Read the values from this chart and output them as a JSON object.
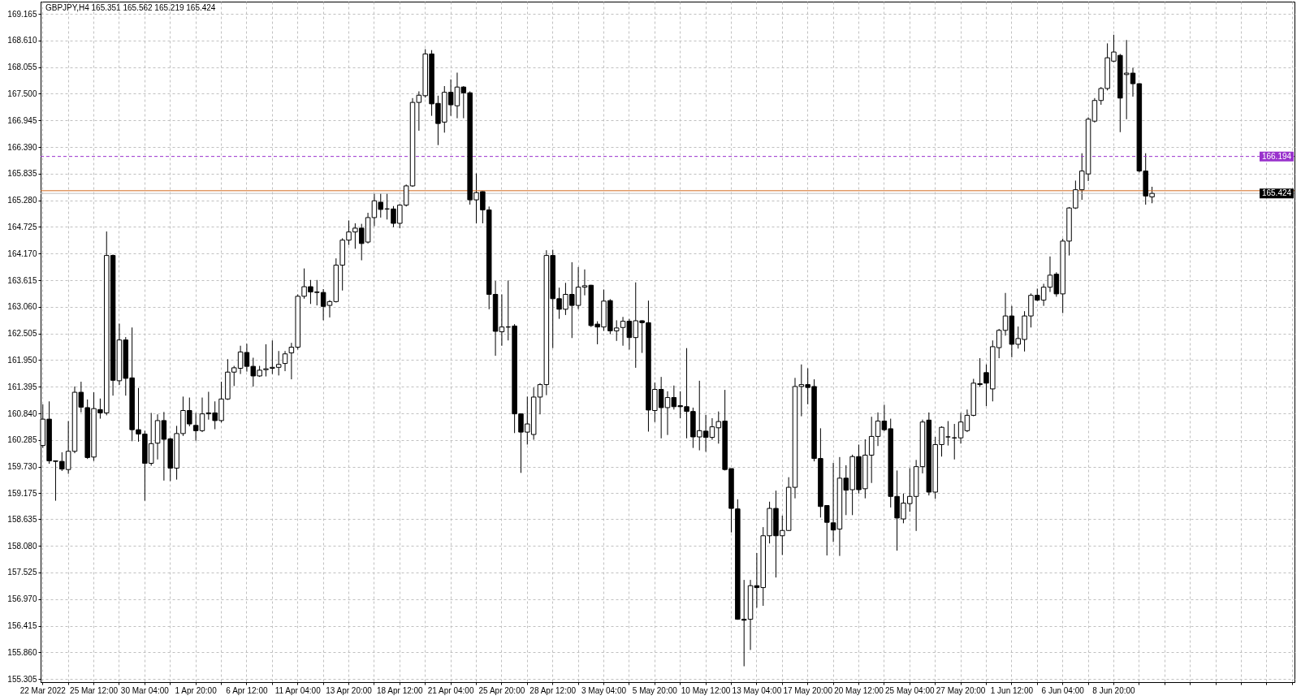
{
  "chart_data": {
    "type": "candlestick",
    "title": "GBPJPY,H4 165.351 165.562 165.219 165.424",
    "categories": [
      "22 Mar 2022",
      null,
      null,
      null,
      null,
      null,
      null,
      null,
      "25 Mar 12:00",
      null,
      null,
      null,
      null,
      null,
      null,
      null,
      "30 Mar 04:00",
      null,
      null,
      null,
      null,
      null,
      null,
      null,
      "1 Apr 20:00",
      null,
      null,
      null,
      null,
      null,
      null,
      null,
      "6 Apr 12:00",
      null,
      null,
      null,
      null,
      null,
      null,
      null,
      "11 Apr 04:00",
      null,
      null,
      null,
      null,
      null,
      null,
      null,
      "13 Apr 20:00",
      null,
      null,
      null,
      null,
      null,
      null,
      null,
      "18 Apr 12:00",
      null,
      null,
      null,
      null,
      null,
      null,
      null,
      "21 Apr 04:00",
      null,
      null,
      null,
      null,
      null,
      null,
      null,
      "25 Apr 20:00",
      null,
      null,
      null,
      null,
      null,
      null,
      null,
      "28 Apr 12:00",
      null,
      null,
      null,
      null,
      null,
      null,
      null,
      "3 May 04:00",
      null,
      null,
      null,
      null,
      null,
      null,
      null,
      "5 May 20:00",
      null,
      null,
      null,
      null,
      null,
      null,
      null,
      "10 May 12:00",
      null,
      null,
      null,
      null,
      null,
      null,
      null,
      "13 May 04:00",
      null,
      null,
      null,
      null,
      null,
      null,
      null,
      "17 May 20:00",
      null,
      null,
      null,
      null,
      null,
      null,
      null,
      "20 May 12:00",
      null,
      null,
      null,
      null,
      null,
      null,
      null,
      "25 May 04:00",
      null,
      null,
      null,
      null,
      null,
      null,
      null,
      "27 May 20:00",
      null,
      null,
      null,
      null,
      null,
      null,
      null,
      "1 Jun 12:00",
      null,
      null,
      null,
      null,
      null,
      null,
      null,
      "6 Jun 04:00",
      null,
      null,
      null,
      null,
      null,
      null,
      null,
      "8 Jun 20:00",
      null,
      null,
      null,
      null,
      null,
      null
    ],
    "ohlc": [
      [
        160.17,
        161.03,
        160.12,
        160.72
      ],
      [
        160.72,
        161.09,
        159.79,
        159.85
      ],
      [
        159.85,
        159.86,
        159.02,
        159.84
      ],
      [
        159.84,
        160.03,
        159.64,
        159.68
      ],
      [
        159.67,
        160.68,
        159.58,
        160.05
      ],
      [
        160.05,
        161.4,
        160.01,
        161.28
      ],
      [
        161.28,
        161.5,
        160.86,
        160.97
      ],
      [
        160.96,
        161.13,
        159.89,
        159.92
      ],
      [
        159.93,
        161.28,
        159.85,
        160.94
      ],
      [
        160.92,
        161.15,
        160.73,
        160.85
      ],
      [
        160.85,
        164.63,
        160.8,
        164.13
      ],
      [
        164.13,
        164.15,
        161.21,
        161.53
      ],
      [
        161.52,
        162.71,
        161.43,
        162.37
      ],
      [
        162.37,
        162.43,
        161.21,
        161.57
      ],
      [
        161.58,
        162.63,
        160.26,
        160.5
      ],
      [
        160.5,
        161.37,
        160.25,
        160.41
      ],
      [
        160.41,
        160.48,
        159.02,
        159.8
      ],
      [
        159.8,
        160.85,
        159.75,
        160.21
      ],
      [
        160.22,
        160.82,
        159.88,
        160.69
      ],
      [
        160.69,
        160.87,
        159.44,
        160.3
      ],
      [
        160.31,
        160.33,
        159.43,
        159.7
      ],
      [
        159.7,
        160.58,
        159.46,
        160.42
      ],
      [
        160.42,
        161.19,
        160.37,
        160.9
      ],
      [
        160.9,
        161.17,
        160.57,
        160.62
      ],
      [
        160.59,
        160.85,
        160.27,
        160.48
      ],
      [
        160.48,
        161.17,
        160.45,
        160.83
      ],
      [
        160.83,
        161.29,
        160.71,
        160.85
      ],
      [
        160.85,
        161.09,
        160.51,
        160.69
      ],
      [
        160.69,
        161.5,
        160.65,
        161.14
      ],
      [
        161.14,
        161.97,
        161.12,
        161.7
      ],
      [
        161.7,
        161.83,
        161.41,
        161.79
      ],
      [
        161.78,
        162.25,
        161.66,
        162.12
      ],
      [
        162.11,
        162.29,
        161.71,
        161.82
      ],
      [
        161.82,
        162.0,
        161.4,
        161.62
      ],
      [
        161.62,
        161.83,
        161.6,
        161.74
      ],
      [
        161.75,
        162.28,
        161.61,
        161.77
      ],
      [
        161.78,
        162.36,
        161.66,
        161.8
      ],
      [
        161.8,
        162.14,
        161.63,
        161.86
      ],
      [
        161.88,
        162.14,
        161.72,
        162.08
      ],
      [
        162.1,
        162.31,
        161.55,
        162.22
      ],
      [
        162.22,
        163.32,
        162.17,
        163.28
      ],
      [
        163.28,
        163.86,
        163.23,
        163.48
      ],
      [
        163.48,
        163.62,
        163.12,
        163.37
      ],
      [
        163.37,
        163.62,
        163.09,
        163.36
      ],
      [
        163.36,
        163.43,
        162.78,
        163.07
      ],
      [
        163.09,
        163.2,
        162.84,
        163.17
      ],
      [
        163.17,
        164.07,
        163.15,
        163.93
      ],
      [
        163.93,
        164.49,
        163.4,
        164.45
      ],
      [
        164.45,
        164.86,
        164.35,
        164.62
      ],
      [
        164.62,
        164.8,
        164.27,
        164.7
      ],
      [
        164.7,
        164.79,
        164.03,
        164.38
      ],
      [
        164.41,
        165.02,
        164.38,
        164.92
      ],
      [
        164.92,
        165.42,
        164.74,
        165.27
      ],
      [
        165.24,
        165.42,
        164.92,
        165.09
      ],
      [
        165.1,
        165.42,
        164.88,
        165.1
      ],
      [
        165.1,
        165.16,
        164.72,
        164.8
      ],
      [
        164.8,
        165.2,
        164.7,
        165.18
      ],
      [
        165.18,
        165.61,
        165.15,
        165.58
      ],
      [
        165.58,
        167.41,
        165.56,
        167.32
      ],
      [
        167.32,
        167.55,
        166.73,
        167.47
      ],
      [
        167.46,
        168.43,
        167.42,
        168.33
      ],
      [
        168.33,
        168.41,
        167.04,
        167.29
      ],
      [
        167.3,
        167.46,
        166.43,
        166.88
      ],
      [
        166.91,
        167.66,
        166.69,
        167.53
      ],
      [
        167.53,
        167.8,
        167.04,
        167.27
      ],
      [
        167.25,
        167.94,
        166.99,
        167.64
      ],
      [
        167.64,
        167.66,
        166.99,
        167.52
      ],
      [
        167.52,
        167.55,
        165.19,
        165.29
      ],
      [
        165.29,
        165.84,
        164.8,
        165.44
      ],
      [
        165.46,
        165.47,
        164.8,
        165.08
      ],
      [
        165.08,
        165.15,
        163.01,
        163.32
      ],
      [
        163.32,
        163.6,
        162.04,
        162.55
      ],
      [
        162.54,
        163.32,
        162.25,
        162.64
      ],
      [
        162.64,
        163.61,
        162.36,
        162.64
      ],
      [
        162.66,
        162.7,
        160.43,
        160.83
      ],
      [
        160.83,
        160.84,
        159.6,
        160.45
      ],
      [
        160.45,
        161.19,
        160.19,
        160.62
      ],
      [
        160.4,
        161.38,
        160.29,
        161.18
      ],
      [
        161.18,
        161.47,
        160.82,
        161.44
      ],
      [
        161.44,
        164.24,
        161.22,
        164.13
      ],
      [
        164.13,
        164.25,
        162.2,
        163.23
      ],
      [
        163.23,
        163.46,
        162.81,
        163.01
      ],
      [
        163.01,
        163.56,
        162.89,
        163.32
      ],
      [
        163.32,
        163.99,
        162.41,
        163.09
      ],
      [
        163.09,
        163.89,
        163.01,
        163.47
      ],
      [
        163.47,
        163.84,
        163.3,
        163.5
      ],
      [
        163.51,
        163.52,
        162.64,
        162.67
      ],
      [
        162.7,
        162.76,
        162.28,
        162.64
      ],
      [
        162.64,
        163.42,
        162.56,
        163.18
      ],
      [
        163.19,
        163.22,
        162.49,
        162.56
      ],
      [
        162.56,
        162.78,
        162.35,
        162.62
      ],
      [
        162.63,
        162.85,
        162.25,
        162.76
      ],
      [
        162.76,
        162.81,
        162.17,
        162.42
      ],
      [
        162.42,
        163.57,
        161.79,
        162.77
      ],
      [
        162.77,
        162.78,
        162.1,
        162.73
      ],
      [
        162.73,
        163.19,
        160.46,
        160.91
      ],
      [
        160.9,
        161.48,
        160.66,
        161.34
      ],
      [
        161.34,
        161.6,
        160.32,
        160.96
      ],
      [
        160.96,
        161.3,
        160.39,
        161.17
      ],
      [
        161.17,
        161.42,
        160.92,
        160.98
      ],
      [
        161.0,
        161.3,
        160.74,
        160.98
      ],
      [
        160.98,
        162.2,
        160.32,
        160.88
      ],
      [
        160.88,
        160.96,
        160.12,
        160.35
      ],
      [
        160.35,
        161.52,
        160.07,
        160.48
      ],
      [
        160.47,
        160.81,
        160.04,
        160.34
      ],
      [
        160.34,
        160.74,
        160.29,
        160.56
      ],
      [
        160.54,
        160.88,
        160.21,
        160.67
      ],
      [
        160.68,
        161.33,
        159.65,
        159.67
      ],
      [
        159.69,
        159.69,
        158.36,
        158.86
      ],
      [
        158.85,
        159.05,
        156.54,
        156.55
      ],
      [
        156.55,
        157.37,
        155.57,
        156.53
      ],
      [
        156.55,
        157.37,
        155.91,
        157.25
      ],
      [
        157.25,
        157.93,
        156.79,
        157.21
      ],
      [
        157.21,
        158.47,
        156.83,
        158.29
      ],
      [
        158.29,
        159.0,
        158.13,
        158.86
      ],
      [
        158.86,
        159.23,
        157.42,
        158.29
      ],
      [
        158.29,
        158.71,
        157.89,
        158.4
      ],
      [
        158.4,
        159.51,
        158.39,
        159.3
      ],
      [
        159.3,
        161.58,
        159.07,
        161.4
      ],
      [
        161.4,
        161.86,
        160.78,
        161.44
      ],
      [
        161.44,
        161.78,
        161.03,
        161.38
      ],
      [
        161.4,
        161.55,
        159.84,
        159.9
      ],
      [
        159.9,
        160.53,
        158.67,
        158.9
      ],
      [
        158.92,
        158.92,
        157.88,
        158.57
      ],
      [
        158.56,
        159.81,
        158.16,
        158.41
      ],
      [
        158.43,
        159.93,
        157.87,
        159.49
      ],
      [
        159.49,
        159.76,
        158.72,
        159.24
      ],
      [
        159.25,
        159.98,
        158.72,
        159.94
      ],
      [
        159.94,
        160.19,
        159.17,
        159.25
      ],
      [
        159.27,
        160.3,
        159.07,
        159.97
      ],
      [
        159.97,
        160.77,
        159.39,
        160.36
      ],
      [
        160.36,
        160.86,
        160.16,
        160.68
      ],
      [
        160.68,
        161.02,
        160.47,
        160.5
      ],
      [
        160.52,
        160.73,
        158.88,
        159.11
      ],
      [
        159.11,
        159.65,
        157.98,
        158.66
      ],
      [
        158.64,
        159.17,
        158.55,
        158.97
      ],
      [
        158.96,
        159.7,
        158.79,
        159.11
      ],
      [
        159.11,
        159.87,
        158.39,
        159.73
      ],
      [
        159.73,
        160.71,
        159.59,
        160.66
      ],
      [
        160.7,
        160.86,
        159.13,
        159.2
      ],
      [
        159.2,
        160.35,
        159.06,
        160.19
      ],
      [
        160.19,
        160.57,
        159.94,
        160.55
      ],
      [
        160.35,
        160.68,
        160.17,
        160.35
      ],
      [
        160.33,
        160.62,
        159.88,
        160.33
      ],
      [
        160.33,
        160.85,
        160.21,
        160.66
      ],
      [
        160.48,
        160.92,
        160.45,
        160.8
      ],
      [
        160.8,
        161.56,
        160.78,
        161.47
      ],
      [
        161.46,
        161.99,
        161.39,
        161.44
      ],
      [
        161.69,
        161.86,
        160.99,
        161.47
      ],
      [
        161.35,
        162.36,
        161.09,
        162.23
      ],
      [
        162.21,
        162.6,
        161.99,
        162.57
      ],
      [
        162.57,
        163.35,
        162.46,
        162.87
      ],
      [
        162.87,
        163.08,
        162.01,
        162.28
      ],
      [
        162.28,
        162.65,
        162.19,
        162.4
      ],
      [
        162.38,
        162.97,
        162.13,
        162.87
      ],
      [
        162.87,
        163.34,
        162.63,
        163.3
      ],
      [
        163.3,
        163.44,
        163.18,
        163.2
      ],
      [
        163.2,
        163.54,
        163.08,
        163.47
      ],
      [
        163.47,
        164.11,
        163.37,
        163.72
      ],
      [
        163.74,
        163.78,
        163.27,
        163.33
      ],
      [
        163.33,
        164.48,
        162.93,
        164.43
      ],
      [
        164.43,
        165.14,
        164.13,
        165.12
      ],
      [
        165.12,
        165.69,
        165.1,
        165.5
      ],
      [
        165.5,
        166.26,
        165.29,
        165.89
      ],
      [
        165.83,
        167.01,
        165.68,
        166.97
      ],
      [
        166.93,
        167.41,
        166.9,
        167.36
      ],
      [
        167.36,
        167.64,
        167.27,
        167.61
      ],
      [
        167.61,
        168.55,
        167.57,
        168.25
      ],
      [
        168.18,
        168.73,
        168.16,
        168.37
      ],
      [
        168.3,
        168.33,
        166.7,
        167.41
      ],
      [
        167.9,
        168.62,
        166.97,
        167.93
      ],
      [
        167.93,
        168.04,
        167.44,
        167.71
      ],
      [
        167.71,
        167.72,
        165.86,
        165.89
      ],
      [
        165.89,
        166.26,
        165.19,
        165.37
      ],
      [
        165.351,
        165.562,
        165.219,
        165.424
      ]
    ],
    "ylim": [
      155.24,
      169.42
    ],
    "yticks": [
      155.305,
      {
        "value": 155.86,
        "label": "155.860"
      },
      156.415,
      {
        "value": 156.97,
        "label": "156.970"
      },
      157.525,
      {
        "value": 158.08,
        "label": "158.080"
      },
      158.635,
      159.175,
      {
        "value": 159.73,
        "label": "159.730"
      },
      160.285,
      {
        "value": 160.84,
        "label": "160.840"
      },
      161.395,
      {
        "value": 161.95,
        "label": "161.950"
      },
      162.505,
      {
        "value": 163.06,
        "label": "163.060"
      },
      163.615,
      {
        "value": 164.17,
        "label": "164.170"
      },
      164.725,
      {
        "value": 165.28,
        "label": "165.280"
      },
      165.835,
      {
        "value": 166.39,
        "label": "166.390"
      },
      166.945,
      {
        "value": 167.5,
        "label": "167.500"
      },
      168.055,
      {
        "value": 168.61,
        "label": "168.610"
      },
      169.165
    ],
    "grid": true,
    "ref_lines": [
      {
        "axis": "y",
        "value": 166.194,
        "label": "166.194",
        "color": "#9932cc",
        "line_style": "dashed"
      },
      {
        "axis": "y",
        "value": 165.48,
        "color": "#d2691e"
      },
      {
        "axis": "y",
        "value": 165.424,
        "label": "165.424",
        "color": "#c0c0c0"
      }
    ]
  }
}
